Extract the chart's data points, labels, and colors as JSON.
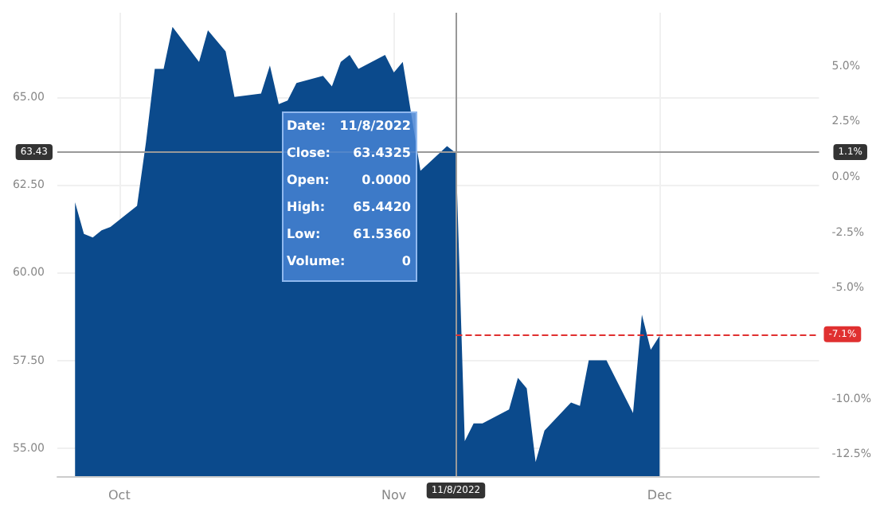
{
  "chart_data": {
    "type": "area",
    "x": [
      "2022-09-26",
      "2022-09-27",
      "2022-09-28",
      "2022-09-29",
      "2022-09-30",
      "2022-10-03",
      "2022-10-04",
      "2022-10-05",
      "2022-10-06",
      "2022-10-07",
      "2022-10-10",
      "2022-10-11",
      "2022-10-12",
      "2022-10-13",
      "2022-10-14",
      "2022-10-17",
      "2022-10-18",
      "2022-10-19",
      "2022-10-20",
      "2022-10-21",
      "2022-10-24",
      "2022-10-25",
      "2022-10-26",
      "2022-10-27",
      "2022-10-28",
      "2022-10-31",
      "2022-11-01",
      "2022-11-02",
      "2022-11-04",
      "2022-11-07",
      "2022-11-08",
      "2022-11-09",
      "2022-11-10",
      "2022-11-11",
      "2022-11-14",
      "2022-11-15",
      "2022-11-16",
      "2022-11-17",
      "2022-11-18",
      "2022-11-21",
      "2022-11-22",
      "2022-11-23",
      "2022-11-25",
      "2022-11-28",
      "2022-11-29",
      "2022-11-30",
      "2022-12-01"
    ],
    "series": [
      {
        "color": "#0b4a8c",
        "values": [
          62.0,
          61.1,
          61.0,
          61.2,
          61.3,
          61.9,
          63.7,
          65.8,
          65.8,
          67.0,
          66.0,
          66.9,
          66.6,
          66.3,
          65.0,
          65.1,
          65.9,
          64.8,
          64.9,
          65.4,
          65.6,
          65.3,
          66.0,
          66.2,
          65.8,
          66.2,
          65.7,
          66.0,
          62.9,
          63.6,
          63.4,
          55.2,
          55.7,
          55.7,
          56.1,
          57.0,
          56.7,
          54.6,
          55.5,
          56.3,
          56.2,
          57.5,
          57.5,
          56.0,
          58.8,
          57.8,
          58.2
        ]
      }
    ],
    "xlim": [
      "2022-09-24",
      "2022-12-19"
    ],
    "xticks": [
      {
        "value": "2022-10-01",
        "label": "Oct"
      },
      {
        "value": "2022-11-01",
        "label": "Nov"
      },
      {
        "value": "2022-12-01",
        "label": "Dec"
      }
    ],
    "ylim": [
      54.2,
      67.4
    ],
    "yticks": [
      {
        "value": 55,
        "label": "55.00"
      },
      {
        "value": 57.5,
        "label": "57.50"
      },
      {
        "value": 60,
        "label": "60.00"
      },
      {
        "value": 62.5,
        "label": "62.50"
      },
      {
        "value": 65,
        "label": "65.00"
      }
    ],
    "y2lim": [
      -13.5,
      7.4
    ],
    "y2ticks": [
      {
        "value": -12.5,
        "label": "-12.5%"
      },
      {
        "value": -10,
        "label": "-10.0%"
      },
      {
        "value": -5,
        "label": "-5.0%"
      },
      {
        "value": -2.5,
        "label": "-2.5%"
      },
      {
        "value": 0,
        "label": "0.0%"
      },
      {
        "value": 2.5,
        "label": "2.5%"
      },
      {
        "value": 5,
        "label": "5.0%"
      }
    ],
    "grid": true,
    "ref_lines": [
      {
        "axis": "y",
        "value": 63.43,
        "label": "63.43",
        "color": "#999999"
      },
      {
        "axis": "x",
        "value": "2022-11-08",
        "label": "11/8/2022",
        "color": "#999999"
      },
      {
        "axis": "y2",
        "value": -7.1,
        "label": "-7.1%",
        "color": "#e03030",
        "line_style": "dashed"
      }
    ],
    "annotations": [
      "Date:",
      "11/8/2022",
      "Close:",
      "63.4325",
      "Open:",
      "0.0000",
      "High:",
      "65.4420",
      "Low:",
      "61.5360",
      "Volume:",
      "0",
      "1.1%"
    ]
  }
}
